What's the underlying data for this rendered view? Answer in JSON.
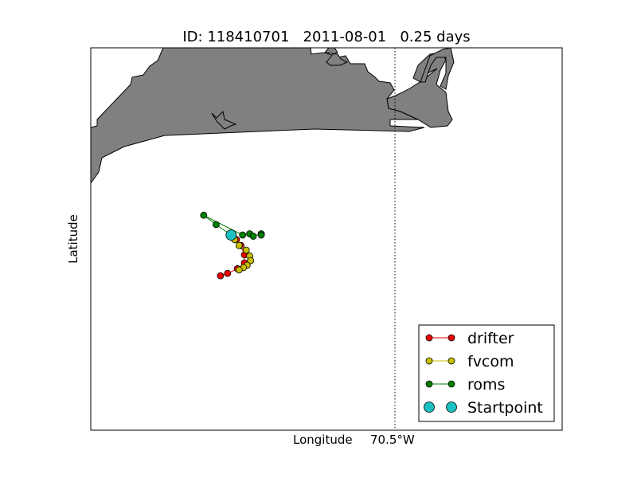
{
  "title": "ID: 118410701   2011-08-01   0.25 days",
  "xlabel": "Longitude",
  "ylabel": "Latitude",
  "x_tick_label": "70.5°W",
  "colors": {
    "land": "#808080",
    "drifter": "#ee0000",
    "fvcom": "#c8c000",
    "roms": "#008000",
    "startpoint": "#1bc0c0"
  },
  "legend": {
    "placement": "lower-right",
    "entries": [
      "drifter",
      "fvcom",
      "roms",
      "Startpoint"
    ]
  },
  "chart_data": {
    "type": "scatter",
    "title": "ID: 118410701   2011-08-01   0.25 days",
    "xlabel": "Longitude",
    "ylabel": "Latitude",
    "xticks": [
      "70.5°W"
    ],
    "series": [
      {
        "name": "drifter",
        "color": "#ee0000",
        "points": [
          [
            -70.685,
            41.305
          ],
          [
            -70.679,
            41.301
          ],
          [
            -70.674,
            41.296
          ],
          [
            -70.67,
            41.288
          ],
          [
            -70.67,
            41.281
          ],
          [
            -70.678,
            41.276
          ],
          [
            -70.689,
            41.272
          ],
          [
            -70.697,
            41.27
          ]
        ]
      },
      {
        "name": "fvcom",
        "color": "#c8c000",
        "points": [
          [
            -70.685,
            41.305
          ],
          [
            -70.681,
            41.301
          ],
          [
            -70.676,
            41.296
          ],
          [
            -70.668,
            41.292
          ],
          [
            -70.664,
            41.287
          ],
          [
            -70.663,
            41.283
          ],
          [
            -70.667,
            41.279
          ],
          [
            -70.671,
            41.277
          ],
          [
            -70.676,
            41.275
          ]
        ]
      },
      {
        "name": "roms",
        "color": "#008000",
        "points": [
          [
            -70.685,
            41.305
          ],
          [
            -70.702,
            41.314
          ],
          [
            -70.716,
            41.322
          ],
          [
            -70.672,
            41.305
          ],
          [
            -70.664,
            41.306
          ],
          [
            -70.66,
            41.304
          ],
          [
            -70.651,
            41.306
          ],
          [
            -70.651,
            41.305
          ]
        ]
      },
      {
        "name": "Startpoint",
        "color": "#1bc0c0",
        "points": [
          [
            -70.685,
            41.305
          ]
        ]
      }
    ]
  }
}
